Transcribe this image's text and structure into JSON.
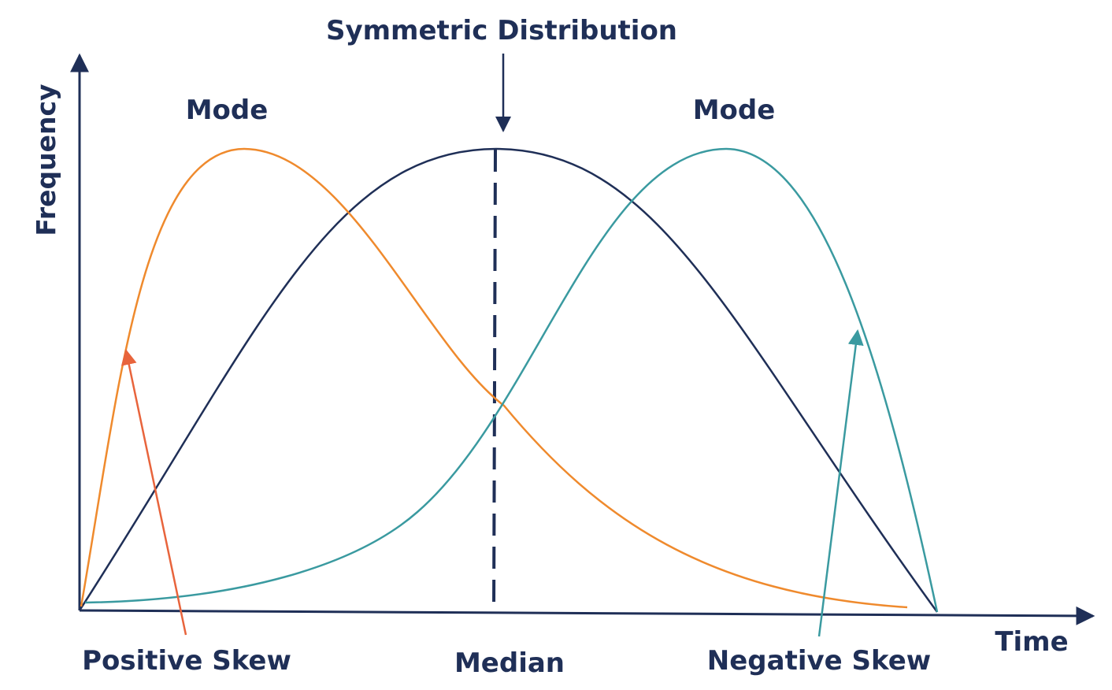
{
  "labels": {
    "symmetric": "Symmetric Distribution",
    "mode_left": "Mode",
    "mode_right": "Mode",
    "y_axis": "Frequency",
    "x_axis": "Time",
    "positive_skew": "Positive Skew",
    "median": "Median",
    "negative_skew": "Negative Skew"
  },
  "colors": {
    "navy": "#1f2f57",
    "orange": "#ef8a2d",
    "teal": "#3a9aa0",
    "red_orange": "#e8643c"
  },
  "curves": {
    "symmetric_curve": {
      "color": "navy"
    },
    "positive_skew_curve": {
      "color": "orange"
    },
    "negative_skew_curve": {
      "color": "teal"
    }
  }
}
